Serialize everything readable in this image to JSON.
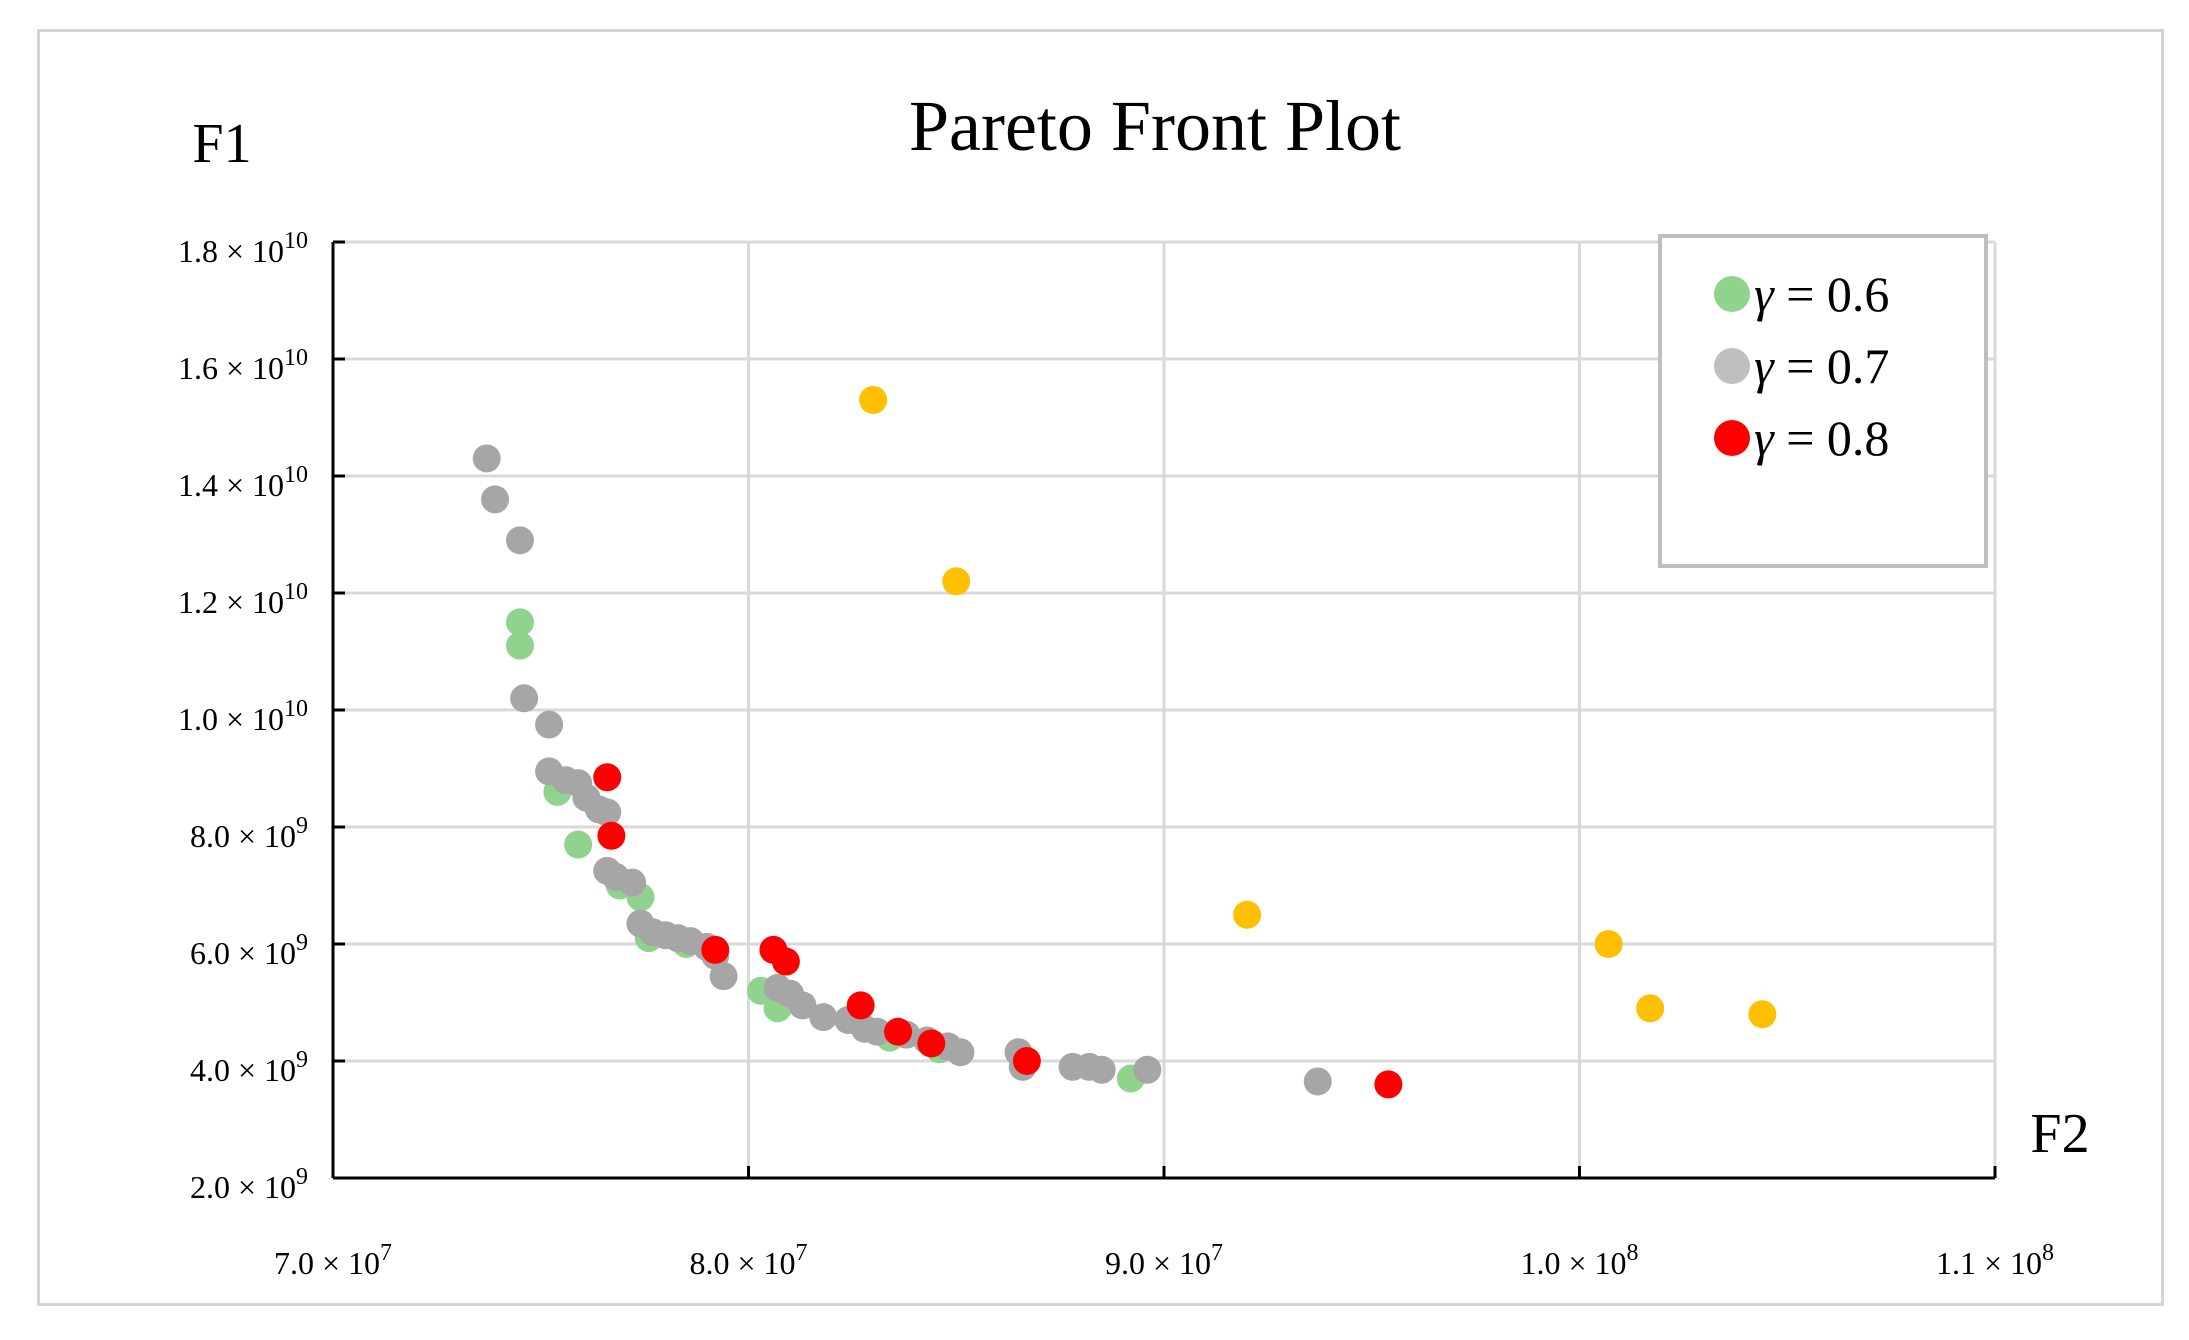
{
  "chart_data": {
    "type": "scatter",
    "title": "Pareto Front Plot",
    "ylabel": "F1",
    "xlabel": "F2",
    "xlim": [
      70000000,
      110000000
    ],
    "ylim": [
      2000000000,
      18000000000
    ],
    "x_ticks": [
      {
        "value": 70000000,
        "mantissa": "7.0",
        "exp": "7"
      },
      {
        "value": 80000000,
        "mantissa": "8.0",
        "exp": "7"
      },
      {
        "value": 90000000,
        "mantissa": "9.0",
        "exp": "7"
      },
      {
        "value": 100000000,
        "mantissa": "1.0",
        "exp": "8"
      },
      {
        "value": 110000000,
        "mantissa": "1.1",
        "exp": "8"
      }
    ],
    "y_ticks": [
      {
        "value": 2000000000,
        "mantissa": "2.0",
        "exp": "9"
      },
      {
        "value": 4000000000,
        "mantissa": "4.0",
        "exp": "9"
      },
      {
        "value": 6000000000,
        "mantissa": "6.0",
        "exp": "9"
      },
      {
        "value": 8000000000,
        "mantissa": "8.0",
        "exp": "9"
      },
      {
        "value": 10000000000,
        "mantissa": "1.0",
        "exp": "10"
      },
      {
        "value": 12000000000,
        "mantissa": "1.2",
        "exp": "10"
      },
      {
        "value": 14000000000,
        "mantissa": "1.4",
        "exp": "10"
      },
      {
        "value": 16000000000,
        "mantissa": "1.6",
        "exp": "10"
      },
      {
        "value": 18000000000,
        "mantissa": "1.8",
        "exp": "10"
      }
    ],
    "grid": true,
    "legend_position": "top-right",
    "series": [
      {
        "name": "γ = 0.6",
        "color": "#90d38c",
        "in_legend": true,
        "points": [
          [
            74.5,
            11.5
          ],
          [
            74.5,
            11.1
          ],
          [
            75.4,
            8.6
          ],
          [
            75.9,
            7.7
          ],
          [
            76.9,
            7.0
          ],
          [
            77.4,
            6.8
          ],
          [
            77.6,
            6.1
          ],
          [
            78.5,
            6.0
          ],
          [
            80.3,
            5.2
          ],
          [
            80.7,
            4.9
          ],
          [
            83.4,
            4.4
          ],
          [
            84.6,
            4.2
          ],
          [
            89.2,
            3.7
          ],
          [
            95.4,
            3.6
          ]
        ]
      },
      {
        "name": "γ = 0.7",
        "color": "#a6a6a6",
        "in_legend": true,
        "points": [
          [
            73.7,
            14.3
          ],
          [
            73.9,
            13.6
          ],
          [
            74.5,
            12.9
          ],
          [
            74.6,
            10.2
          ],
          [
            75.2,
            9.75
          ],
          [
            75.2,
            8.95
          ],
          [
            75.6,
            8.8
          ],
          [
            75.9,
            8.75
          ],
          [
            76.1,
            8.5
          ],
          [
            76.4,
            8.3
          ],
          [
            76.6,
            8.25
          ],
          [
            76.6,
            7.25
          ],
          [
            76.8,
            7.15
          ],
          [
            77.2,
            7.05
          ],
          [
            77.4,
            6.35
          ],
          [
            77.7,
            6.2
          ],
          [
            78.0,
            6.15
          ],
          [
            78.3,
            6.1
          ],
          [
            78.6,
            6.05
          ],
          [
            79.0,
            5.95
          ],
          [
            79.2,
            5.8
          ],
          [
            79.4,
            5.45
          ],
          [
            80.7,
            5.25
          ],
          [
            81.0,
            5.15
          ],
          [
            81.3,
            4.95
          ],
          [
            81.8,
            4.75
          ],
          [
            82.4,
            4.7
          ],
          [
            82.8,
            4.55
          ],
          [
            83.1,
            4.5
          ],
          [
            83.8,
            4.45
          ],
          [
            84.3,
            4.35
          ],
          [
            84.8,
            4.25
          ],
          [
            85.1,
            4.15
          ],
          [
            86.5,
            4.15
          ],
          [
            86.6,
            3.9
          ],
          [
            87.8,
            3.9
          ],
          [
            88.2,
            3.9
          ],
          [
            88.5,
            3.85
          ],
          [
            89.6,
            3.85
          ],
          [
            93.7,
            3.65
          ]
        ]
      },
      {
        "name": "γ = 0.8",
        "color": "#ff0000",
        "in_legend": true,
        "points": [
          [
            76.6,
            8.85
          ],
          [
            76.7,
            7.85
          ],
          [
            79.2,
            5.9
          ],
          [
            80.6,
            5.9
          ],
          [
            80.9,
            5.7
          ],
          [
            82.7,
            4.95
          ],
          [
            83.6,
            4.5
          ],
          [
            84.4,
            4.3
          ],
          [
            86.7,
            4.0
          ],
          [
            95.4,
            3.6
          ]
        ]
      },
      {
        "name": "",
        "color": "#ffc000",
        "in_legend": false,
        "points": [
          [
            83.0,
            15.3
          ],
          [
            85.0,
            12.2
          ],
          [
            92.0,
            6.5
          ],
          [
            100.7,
            6.0
          ],
          [
            101.7,
            4.9
          ],
          [
            104.4,
            4.8
          ]
        ]
      }
    ],
    "point_units": {
      "x": "1e6",
      "y": "1e9"
    }
  },
  "legend": {
    "items": [
      {
        "symbol": "γ",
        "equals": "=",
        "value": "0.6",
        "color": "#90d38c"
      },
      {
        "symbol": "γ",
        "equals": "=",
        "value": "0.7",
        "color": "#bfbfbf"
      },
      {
        "symbol": "γ",
        "equals": "=",
        "value": "0.8",
        "color": "#ff0000"
      }
    ]
  },
  "colors": {
    "grid": "#d9d9d9",
    "axis": "#000000",
    "frame": "#d4d4d4",
    "legend_border": "#bfbfbf"
  }
}
